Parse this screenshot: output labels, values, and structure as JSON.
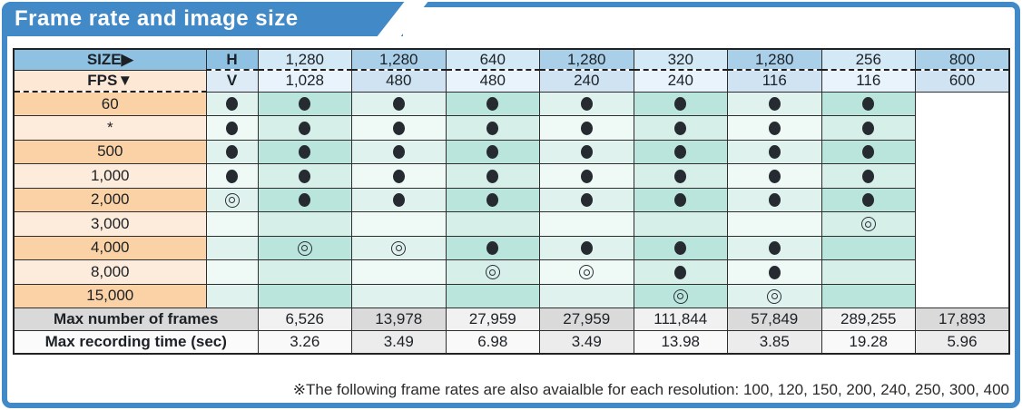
{
  "banner": {
    "title": "Frame rate and image size"
  },
  "table": {
    "size_label": "SIZE▶",
    "fps_label": "FPS▼",
    "h_label": "H",
    "v_label": "V",
    "h_values": [
      "1,280",
      "1,280",
      "640",
      "1,280",
      "320",
      "1,280",
      "256",
      "800"
    ],
    "v_values": [
      "1,028",
      "480",
      "480",
      "240",
      "240",
      "116",
      "116",
      "600"
    ],
    "fps_rows": [
      {
        "fps": "60",
        "marks": [
          "f",
          "f",
          "f",
          "f",
          "f",
          "f",
          "f",
          "f"
        ]
      },
      {
        "fps": "*",
        "marks": [
          "f",
          "f",
          "f",
          "f",
          "f",
          "f",
          "f",
          "f"
        ]
      },
      {
        "fps": "500",
        "marks": [
          "f",
          "f",
          "f",
          "f",
          "f",
          "f",
          "f",
          "f"
        ]
      },
      {
        "fps": "1,000",
        "marks": [
          "f",
          "f",
          "f",
          "f",
          "f",
          "f",
          "f",
          "f"
        ]
      },
      {
        "fps": "2,000",
        "marks": [
          "d",
          "f",
          "f",
          "f",
          "f",
          "f",
          "f",
          "f"
        ]
      },
      {
        "fps": "3,000",
        "marks": [
          "",
          "",
          "",
          "",
          "",
          "",
          "",
          "d"
        ]
      },
      {
        "fps": "4,000",
        "marks": [
          "",
          "d",
          "d",
          "f",
          "f",
          "f",
          "f",
          ""
        ]
      },
      {
        "fps": "8,000",
        "marks": [
          "",
          "",
          "",
          "d",
          "d",
          "f",
          "f",
          ""
        ]
      },
      {
        "fps": "15,000",
        "marks": [
          "",
          "",
          "",
          "",
          "",
          "d",
          "d",
          ""
        ]
      }
    ],
    "max_frames_label": "Max number of frames",
    "max_frames": [
      "6,526",
      "13,978",
      "27,959",
      "27,959",
      "111,844",
      "57,849",
      "289,255",
      "17,893"
    ],
    "max_time_label": "Max recording time (sec)",
    "max_time": [
      "3.26",
      "3.49",
      "6.98",
      "3.49",
      "13.98",
      "3.85",
      "19.28",
      "5.96"
    ]
  },
  "footnote": "※The following frame rates are also avaialble for each resolution: 100, 120, 150, 200, 240, 250, 300, 400",
  "icons": {
    "filled_circle": "available",
    "double_circle": "conditionally-available"
  },
  "colors": {
    "frame_blue": "#4289c8",
    "header_blue": "#8fc2e2",
    "header_light_blue": "#d4e9f6",
    "fps_peach_dark": "#fad2a5",
    "fps_peach_light": "#fdecdc",
    "grid_teal_dark": "#b9e5dd",
    "grid_teal_light": "#dff2ed",
    "summary_gray": "#d9d9d9",
    "mark_color": "#262a31"
  }
}
